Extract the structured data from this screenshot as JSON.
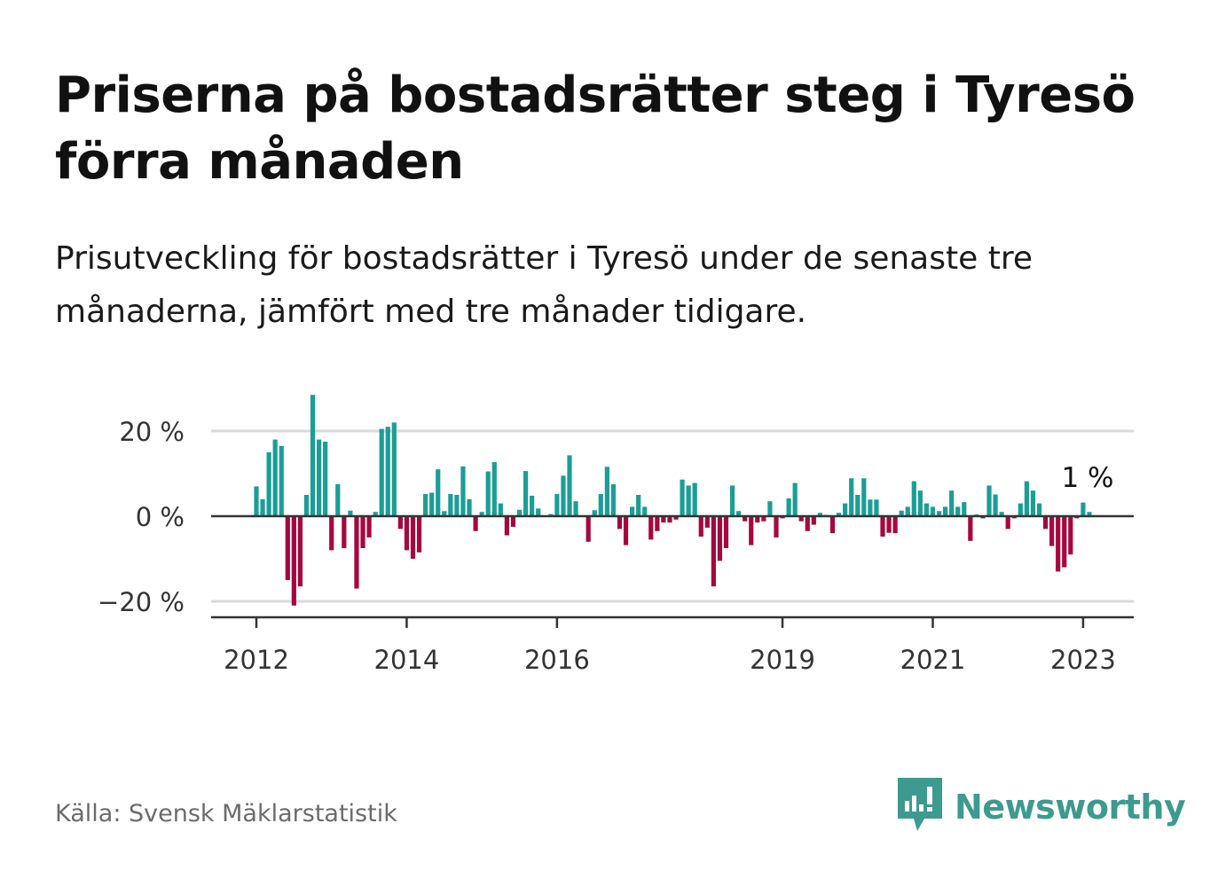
{
  "title": "Priserna på bostadsrätter steg i Tyresö förra månaden",
  "subtitle": "Prisutveckling för bostadsrätter i Tyresö under de senaste tre månaderna, jämfört med tre månader tidigare.",
  "source": "Källa: Svensk Mäklarstatistik",
  "brand": {
    "name": "Newsworthy",
    "icon": "newsworthy-logo-icon"
  },
  "colors": {
    "positive": "#1a9e96",
    "negative": "#a5073f",
    "grid": "#d9d9d9",
    "axis": "#333333",
    "brand": "#3d9a8e"
  },
  "chart_data": {
    "type": "bar",
    "x_ticks": [
      "2012",
      "2014",
      "2016",
      "2019",
      "2021",
      "2023"
    ],
    "y_ticks": [
      {
        "value": 20,
        "label": "20 %"
      },
      {
        "value": 0,
        "label": "0 %"
      },
      {
        "value": -20,
        "label": "−20 %"
      }
    ],
    "ylim": [
      -23,
      30
    ],
    "grid": true,
    "annotation": {
      "text": "1 %",
      "value": 1
    },
    "start": "2012-01",
    "end": "2023-02",
    "values": [
      7,
      4,
      15,
      18,
      16.5,
      -15,
      -21,
      -16.5,
      5,
      28.5,
      18,
      17.5,
      -8,
      7.5,
      -7.5,
      1.3,
      -17,
      -7.5,
      -5,
      1,
      20.5,
      21,
      22,
      -3,
      -8,
      -10,
      -8.5,
      5.2,
      5.5,
      11,
      1.2,
      5.2,
      5,
      11.7,
      4,
      -3.5,
      1,
      10.5,
      12.7,
      3,
      -4.5,
      -2.5,
      1.5,
      10.6,
      4.8,
      1.8,
      0.2,
      0.5,
      5.2,
      9.5,
      14.3,
      3.5,
      0.2,
      -6,
      1.4,
      5.2,
      11.6,
      7.5,
      -3,
      -6.8,
      2.2,
      5,
      2.2,
      -5.5,
      -3.5,
      -1.5,
      -1.5,
      -0.8,
      8.6,
      7.2,
      7.8,
      -4.8,
      -2.7,
      -16.5,
      -10.5,
      -7.5,
      7.2,
      1.2,
      -1.2,
      -6.8,
      -1.5,
      -1.2,
      3.5,
      -5,
      -0.5,
      4.2,
      7.8,
      -1.2,
      -3.5,
      -2,
      0.8,
      0.3,
      -4,
      0.8,
      3,
      8.9,
      5,
      8.9,
      3.9,
      3.9,
      -4.8,
      -3.9,
      -4,
      1.3,
      2.2,
      8.2,
      6,
      3,
      2.2,
      1.2,
      2.2,
      6,
      2.2,
      3.3,
      -5.8,
      0.4,
      -0.5,
      7.2,
      5.1,
      1,
      -3,
      -0.5,
      3,
      8.2,
      6,
      3,
      -3,
      -7,
      -13,
      -12,
      -9,
      -0.5,
      3.2,
      1
    ]
  }
}
